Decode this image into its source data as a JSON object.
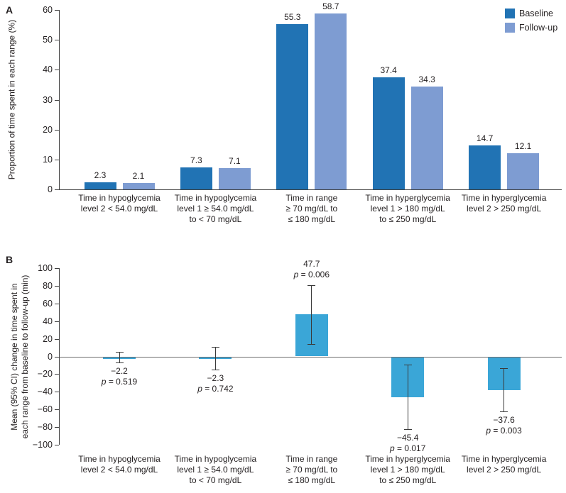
{
  "colors": {
    "baseline": "#2173b4",
    "followup": "#7e9cd2",
    "change_bar": "#3aa6d7",
    "axis": "#3f3f3f",
    "zero_line": "#6e6e6e",
    "error_bar": "#3a3a3a",
    "text": "#231f20"
  },
  "panels": {
    "a_label": "A",
    "b_label": "B"
  },
  "legend": {
    "items": [
      {
        "label": "Baseline",
        "color_key": "baseline"
      },
      {
        "label": "Follow-up",
        "color_key": "followup"
      }
    ]
  },
  "chart_data": [
    {
      "id": "A",
      "type": "bar",
      "title": "",
      "ylabel": "Proportion of time spent in each range (%)",
      "ylim": [
        0,
        60
      ],
      "yticks": [
        0,
        10,
        20,
        30,
        40,
        50,
        60
      ],
      "grid": false,
      "legend_position": "top-right",
      "categories": [
        [
          "Time in hypoglycemia",
          "level 2 < 54.0 mg/dL"
        ],
        [
          "Time in hypoglycemia",
          "level 1 ≥ 54.0 mg/dL",
          "to < 70 mg/dL"
        ],
        [
          "Time in range",
          "≥ 70 mg/dL to",
          "≤ 180 mg/dL"
        ],
        [
          "Time in hyperglycemia",
          "level 1 > 180 mg/dL",
          "to ≤ 250 mg/dL"
        ],
        [
          "Time in hyperglycemia",
          "level 2 > 250 mg/dL"
        ]
      ],
      "series": [
        {
          "name": "Baseline",
          "values": [
            2.3,
            7.3,
            55.3,
            37.4,
            14.7
          ]
        },
        {
          "name": "Follow-up",
          "values": [
            2.1,
            7.1,
            58.7,
            34.3,
            12.1
          ]
        }
      ]
    },
    {
      "id": "B",
      "type": "bar",
      "title": "",
      "ylabel_lines": [
        "Mean (95% CI) change in time spent in",
        "each range from baseline to follow-up (min)"
      ],
      "ylim": [
        -100,
        100
      ],
      "yticks": [
        100,
        80,
        60,
        40,
        20,
        0,
        -20,
        -40,
        -60,
        -80,
        -100
      ],
      "ytick_labels": [
        "100",
        "80",
        "60",
        "40",
        "20",
        "0",
        "−20",
        "−40",
        "−60",
        "−80",
        "−100"
      ],
      "grid": false,
      "categories": [
        [
          "Time in hypoglycemia",
          "level 2 < 54.0 mg/dL"
        ],
        [
          "Time in hypoglycemia",
          "level 1 ≥ 54.0 mg/dL",
          "to < 70 mg/dL"
        ],
        [
          "Time in range",
          "≥ 70 mg/dL to",
          "≤ 180 mg/dL"
        ],
        [
          "Time in hyperglycemia",
          "level 1 > 180 mg/dL",
          "to ≤ 250 mg/dL"
        ],
        [
          "Time in hyperglycemia",
          "level 2 > 250 mg/dL"
        ]
      ],
      "values": [
        -2.2,
        -2.3,
        47.7,
        -45.4,
        -37.6
      ],
      "ci_low": [
        -7,
        -15,
        14,
        -82,
        -62
      ],
      "ci_high": [
        5,
        11,
        81,
        -9,
        -13
      ],
      "value_labels": [
        "−2.2",
        "−2.3",
        "47.7",
        "−45.4",
        "−37.6"
      ],
      "p_labels": [
        "p = 0.519",
        "p = 0.742",
        "p = 0.006",
        "p = 0.017",
        "p = 0.003"
      ]
    }
  ]
}
